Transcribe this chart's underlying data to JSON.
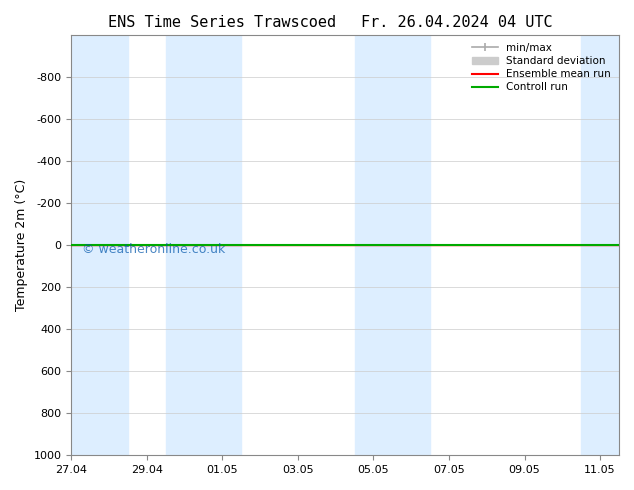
{
  "title_left": "ENS Time Series Trawscoed",
  "title_right": "Fr. 26.04.2024 04 UTC",
  "ylabel": "Temperature 2m (°C)",
  "watermark": "© weatheronline.co.uk",
  "ylim_bottom": 1000,
  "ylim_top": -1000,
  "yticks": [
    -800,
    -600,
    -400,
    -200,
    0,
    200,
    400,
    600,
    800,
    1000
  ],
  "x_tick_labels": [
    "27.04",
    "29.04",
    "01.05",
    "03.05",
    "05.05",
    "07.05",
    "09.05",
    "11.05"
  ],
  "x_tick_positions": [
    0,
    2,
    4,
    6,
    8,
    10,
    12,
    14
  ],
  "shaded_bands": [
    [
      0.0,
      1.5
    ],
    [
      2.5,
      4.5
    ],
    [
      7.5,
      9.5
    ],
    [
      13.5,
      14.5
    ]
  ],
  "shaded_color": "#ddeeff",
  "green_line_y": 0,
  "red_line_y": 0,
  "background_color": "#ffffff",
  "plot_bg_color": "#ffffff",
  "grid_color": "#cccccc",
  "legend_items": [
    "min/max",
    "Standard deviation",
    "Ensemble mean run",
    "Controll run"
  ],
  "legend_colors": [
    "#aaaaaa",
    "#cccccc",
    "#ff0000",
    "#00aa00"
  ],
  "x_min": 0,
  "x_max": 14.5
}
